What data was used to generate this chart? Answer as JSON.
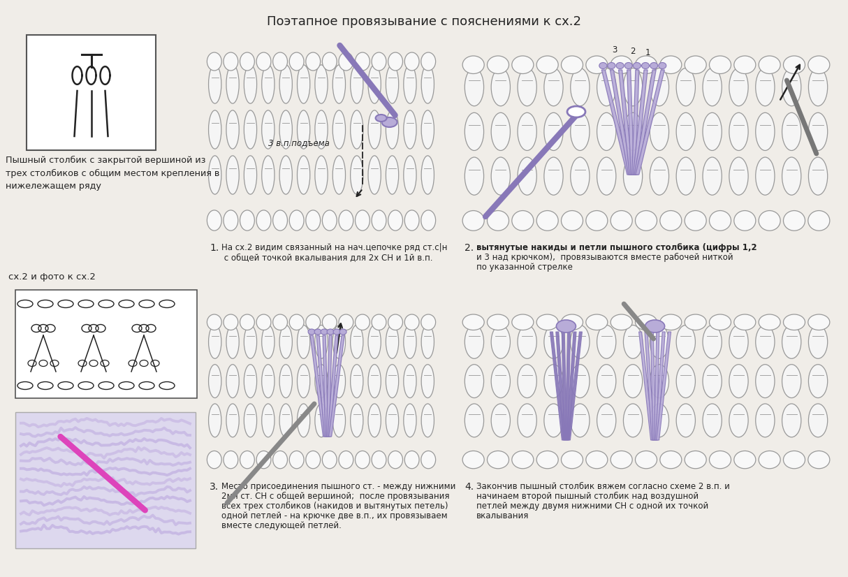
{
  "title": "Поэтапное провязывание с пояснениями к сх.2",
  "background_color": "#f0ede8",
  "text_color": "#222222",
  "accent_color": "#8878b8",
  "accent_light": "#b8acd8",
  "box1_text": "Пышный столбик с закрытой вершиной из\nтрех столбиков с общим местом крепления в\nнижележащем ряду",
  "label_left": "сх.2 и фото к сх.2",
  "caption1_num": "1.",
  "caption1": " с общей точкой вкалывания для 2х СН и 1й в.п.",
  "caption1_line1": "На сх.2 видим связанный на нач.цепочке ряд ст.с|н",
  "caption2_num": "2.",
  "caption2_line1": "вытянутые накиды и петли пышного столбика (цифры 1,2",
  "caption2_line2": "и 3 над крючком),  провязываются вместе рабочей ниткой",
  "caption2_line3": "по указанной стрелке",
  "caption3_num": "3.",
  "caption3_line1": "Место присоединения пышного ст. - между нижними",
  "caption3_line2": "2мя ст. СН с общей вершиной;  после провязывания",
  "caption3_line3": "всех трех столбиков (накидов и вытянутых петель)",
  "caption3_line4": "одной петлей - на крючке две в.п., их провязываем",
  "caption3_line5": "вместе следующей петлей.",
  "caption4_num": "4.",
  "caption4_line1": "Закончив пышный столбик вяжем согласно схеме 2 в.п. и",
  "caption4_line2": "начинаем второй пышный столбик над воздушной",
  "caption4_line3": "петлей между двумя нижними СН с одной их точкой",
  "caption4_line4": "вкалывания",
  "ann1": "3 в.п.подъема",
  "ann2_1": "3",
  "ann2_2": "2",
  "ann2_3": "1",
  "figsize": [
    12.14,
    8.26
  ],
  "dpi": 100
}
